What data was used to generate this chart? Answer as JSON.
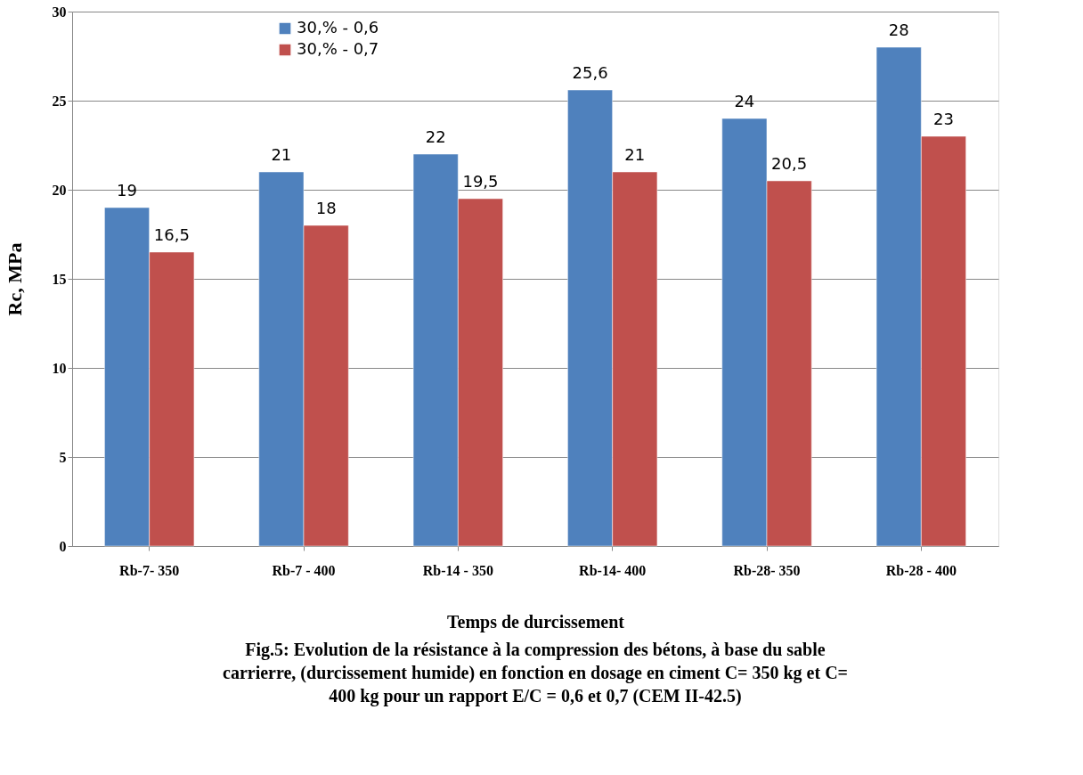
{
  "chart_data": {
    "type": "bar",
    "xlabel": "Temps de durcissement",
    "ylabel": "Rc, MPa",
    "categories": [
      "Rb-7- 350",
      "Rb-7 - 400",
      "Rb-14 - 350",
      "Rb-14- 400",
      "Rb-28- 350",
      "Rb-28 - 400"
    ],
    "series": [
      {
        "name": "30,% - 0,6",
        "color": "#4f81bd",
        "values": [
          19,
          21,
          22,
          25.6,
          24,
          28
        ],
        "value_labels": [
          "19",
          "21",
          "22",
          "25,6",
          "24",
          "28"
        ]
      },
      {
        "name": "30,% - 0,7",
        "color": "#c0504d",
        "values": [
          16.5,
          18,
          19.5,
          21,
          20.5,
          23
        ],
        "value_labels": [
          "16,5",
          "18",
          "19,5",
          "21",
          "20,5",
          "23"
        ]
      }
    ],
    "ylim": [
      0,
      30
    ],
    "yticks": [
      0,
      5,
      10,
      15,
      20,
      25,
      30
    ],
    "grid": "y",
    "legend": "top left",
    "annotations": [
      "Fig.5: Evolution de la résistance à la compression des bétons, à base du sable carrierre, (durcissement humide) en fonction en dosage en ciment C= 350 kg et C= 400 kg pour un rapport E/C = 0,6 et 0,7 (CEM II-42.5)"
    ]
  }
}
